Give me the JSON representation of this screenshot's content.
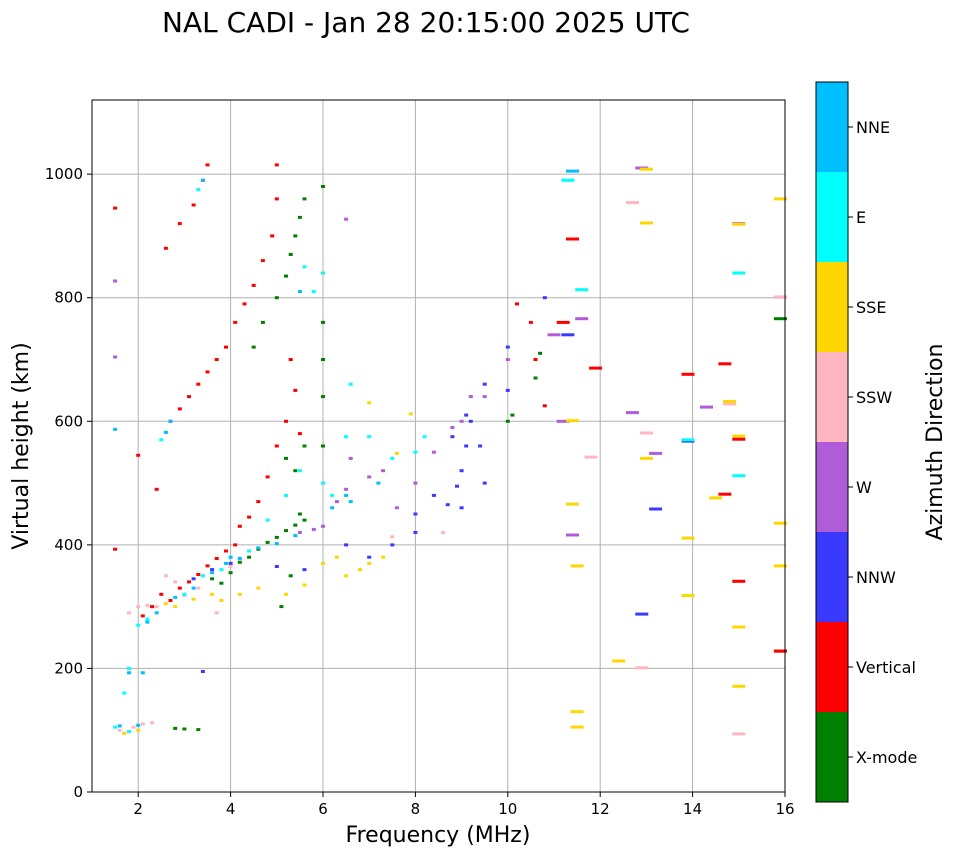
{
  "chart_data": {
    "type": "scatter",
    "title": "NAL CADI - Jan 28 20:15:00 2025 UTC",
    "xlabel": "Frequency (MHz)",
    "ylabel": "Virtual height (km)",
    "xlim": [
      1,
      16
    ],
    "ylim": [
      0,
      1120
    ],
    "xticks": [
      2,
      4,
      6,
      8,
      10,
      12,
      14,
      16
    ],
    "yticks": [
      0,
      200,
      400,
      600,
      800,
      1000
    ],
    "grid": true,
    "colorbar": {
      "label": "Azimuth Direction",
      "categories": [
        "X-mode",
        "Vertical",
        "NNW",
        "W",
        "SSW",
        "SSE",
        "E",
        "NNE"
      ],
      "colors": [
        "#008000",
        "#ff0000",
        "#3a3aff",
        "#b05cd8",
        "#ffb6c1",
        "#ffd700",
        "#00ffff",
        "#00bfff"
      ]
    },
    "series": [
      {
        "name": "X-mode",
        "points": [
          [
            2.8,
            103
          ],
          [
            3.0,
            102
          ],
          [
            3.3,
            101
          ],
          [
            3.6,
            345
          ],
          [
            3.8,
            338
          ],
          [
            4.0,
            355
          ],
          [
            4.2,
            372
          ],
          [
            4.4,
            380
          ],
          [
            4.6,
            393
          ],
          [
            4.8,
            404
          ],
          [
            5.0,
            412
          ],
          [
            5.2,
            423
          ],
          [
            5.4,
            432
          ],
          [
            5.6,
            440
          ],
          [
            5.1,
            300
          ],
          [
            5.3,
            350
          ],
          [
            5.5,
            450
          ],
          [
            5.2,
            540
          ],
          [
            5.4,
            520
          ],
          [
            5.6,
            560
          ],
          [
            4.5,
            720
          ],
          [
            4.7,
            760
          ],
          [
            5.0,
            800
          ],
          [
            5.2,
            835
          ],
          [
            5.3,
            870
          ],
          [
            5.4,
            900
          ],
          [
            5.5,
            930
          ],
          [
            5.6,
            960
          ],
          [
            6.0,
            980
          ],
          [
            6.0,
            760
          ],
          [
            6.0,
            700
          ],
          [
            6.0,
            640
          ],
          [
            6.0,
            560
          ],
          [
            10.0,
            600
          ],
          [
            10.1,
            610
          ],
          [
            10.6,
            670
          ],
          [
            10.7,
            710
          ],
          [
            15.9,
            766
          ],
          [
            15.9,
            228
          ]
        ]
      },
      {
        "name": "Vertical",
        "points": [
          [
            1.5,
            945
          ],
          [
            1.5,
            393
          ],
          [
            2.0,
            545
          ],
          [
            2.1,
            285
          ],
          [
            2.3,
            300
          ],
          [
            2.5,
            320
          ],
          [
            2.7,
            310
          ],
          [
            2.9,
            330
          ],
          [
            3.1,
            340
          ],
          [
            3.3,
            352
          ],
          [
            3.5,
            366
          ],
          [
            3.7,
            378
          ],
          [
            3.9,
            390
          ],
          [
            4.1,
            400
          ],
          [
            4.2,
            430
          ],
          [
            4.4,
            445
          ],
          [
            4.6,
            470
          ],
          [
            4.8,
            510
          ],
          [
            5.0,
            560
          ],
          [
            5.2,
            600
          ],
          [
            2.4,
            490
          ],
          [
            2.7,
            600
          ],
          [
            2.9,
            620
          ],
          [
            3.1,
            640
          ],
          [
            3.3,
            660
          ],
          [
            3.5,
            680
          ],
          [
            3.7,
            700
          ],
          [
            3.9,
            720
          ],
          [
            4.1,
            760
          ],
          [
            4.3,
            790
          ],
          [
            4.5,
            820
          ],
          [
            4.7,
            860
          ],
          [
            4.9,
            900
          ],
          [
            5.0,
            960
          ],
          [
            5.0,
            1015
          ],
          [
            3.4,
            990
          ],
          [
            2.6,
            880
          ],
          [
            2.9,
            920
          ],
          [
            3.2,
            950
          ],
          [
            3.5,
            1015
          ],
          [
            5.3,
            700
          ],
          [
            5.4,
            650
          ],
          [
            5.5,
            580
          ],
          [
            10.2,
            790
          ],
          [
            10.5,
            760
          ],
          [
            10.6,
            700
          ],
          [
            10.8,
            625
          ],
          [
            11.2,
            760
          ],
          [
            11.4,
            895
          ],
          [
            11.9,
            686
          ],
          [
            13.9,
            676
          ],
          [
            14.7,
            693
          ],
          [
            14.7,
            482
          ],
          [
            15.0,
            571
          ],
          [
            15.0,
            341
          ],
          [
            15.9,
            228
          ]
        ]
      },
      {
        "name": "NNW",
        "points": [
          [
            3.2,
            345
          ],
          [
            3.6,
            360
          ],
          [
            4.0,
            370
          ],
          [
            5.0,
            365
          ],
          [
            5.6,
            360
          ],
          [
            6.5,
            400
          ],
          [
            7.0,
            380
          ],
          [
            7.5,
            400
          ],
          [
            8.0,
            420
          ],
          [
            8.0,
            450
          ],
          [
            8.4,
            480
          ],
          [
            8.7,
            465
          ],
          [
            8.9,
            495
          ],
          [
            9.0,
            520
          ],
          [
            9.1,
            560
          ],
          [
            9.2,
            600
          ],
          [
            9.4,
            560
          ],
          [
            9.5,
            500
          ],
          [
            9.5,
            660
          ],
          [
            9.0,
            460
          ],
          [
            8.8,
            575
          ],
          [
            9.1,
            610
          ],
          [
            10.0,
            650
          ],
          [
            10.0,
            720
          ],
          [
            10.8,
            800
          ],
          [
            11.3,
            740
          ],
          [
            13.2,
            458
          ],
          [
            12.9,
            288
          ],
          [
            13.9,
            568
          ],
          [
            3.4,
            195
          ]
        ]
      },
      {
        "name": "W",
        "points": [
          [
            5.5,
            420
          ],
          [
            5.8,
            425
          ],
          [
            6.0,
            430
          ],
          [
            6.3,
            470
          ],
          [
            6.5,
            490
          ],
          [
            6.6,
            540
          ],
          [
            7.0,
            510
          ],
          [
            7.3,
            520
          ],
          [
            7.6,
            460
          ],
          [
            8.0,
            500
          ],
          [
            8.4,
            550
          ],
          [
            8.8,
            590
          ],
          [
            9.0,
            600
          ],
          [
            9.2,
            640
          ],
          [
            9.5,
            640
          ],
          [
            10.0,
            700
          ],
          [
            11.0,
            740
          ],
          [
            11.2,
            600
          ],
          [
            11.4,
            416
          ],
          [
            11.6,
            766
          ],
          [
            12.7,
            614
          ],
          [
            13.2,
            548
          ],
          [
            14.3,
            623
          ],
          [
            15.0,
            920
          ],
          [
            15.9,
            801
          ],
          [
            6.5,
            927
          ],
          [
            1.5,
            827
          ],
          [
            1.5,
            704
          ],
          [
            12.9,
            1010
          ]
        ]
      },
      {
        "name": "SSW",
        "points": [
          [
            1.6,
            100
          ],
          [
            1.9,
            105
          ],
          [
            2.1,
            110
          ],
          [
            2.3,
            112
          ],
          [
            1.8,
            290
          ],
          [
            2.0,
            300
          ],
          [
            2.2,
            302
          ],
          [
            2.4,
            300
          ],
          [
            2.6,
            350
          ],
          [
            2.8,
            340
          ],
          [
            3.0,
            318
          ],
          [
            3.3,
            330
          ],
          [
            3.7,
            290
          ],
          [
            4.0,
            365
          ],
          [
            7.5,
            413
          ],
          [
            11.8,
            542
          ],
          [
            12.7,
            954
          ],
          [
            13.0,
            581
          ],
          [
            14.8,
            628
          ],
          [
            15.0,
            94
          ],
          [
            15.9,
            801
          ],
          [
            12.9,
            201
          ],
          [
            8.6,
            420
          ]
        ]
      },
      {
        "name": "SSE",
        "points": [
          [
            1.7,
            95
          ],
          [
            2.0,
            100
          ],
          [
            2.6,
            305
          ],
          [
            2.8,
            300
          ],
          [
            3.2,
            312
          ],
          [
            3.6,
            320
          ],
          [
            3.8,
            310
          ],
          [
            4.2,
            320
          ],
          [
            4.6,
            330
          ],
          [
            5.2,
            320
          ],
          [
            5.6,
            335
          ],
          [
            6.0,
            370
          ],
          [
            6.3,
            380
          ],
          [
            6.5,
            350
          ],
          [
            6.8,
            360
          ],
          [
            7.0,
            370
          ],
          [
            7.3,
            380
          ],
          [
            7.6,
            548
          ],
          [
            7.9,
            612
          ],
          [
            7.0,
            630
          ],
          [
            11.4,
            466
          ],
          [
            11.5,
            366
          ],
          [
            11.5,
            130
          ],
          [
            11.5,
            105
          ],
          [
            11.4,
            601
          ],
          [
            12.4,
            212
          ],
          [
            13.0,
            540
          ],
          [
            13.0,
            921
          ],
          [
            13.0,
            1008
          ],
          [
            13.9,
            411
          ],
          [
            13.9,
            318
          ],
          [
            14.5,
            476
          ],
          [
            14.8,
            632
          ],
          [
            15.0,
            919
          ],
          [
            15.0,
            576
          ],
          [
            15.0,
            267
          ],
          [
            15.0,
            171
          ],
          [
            15.9,
            960
          ],
          [
            15.9,
            435
          ],
          [
            15.9,
            366
          ]
        ]
      },
      {
        "name": "E",
        "points": [
          [
            1.5,
            105
          ],
          [
            1.8,
            98
          ],
          [
            2.0,
            270
          ],
          [
            2.2,
            280
          ],
          [
            3.0,
            320
          ],
          [
            3.4,
            350
          ],
          [
            3.8,
            360
          ],
          [
            4.4,
            390
          ],
          [
            4.8,
            440
          ],
          [
            5.2,
            480
          ],
          [
            5.5,
            520
          ],
          [
            6.0,
            500
          ],
          [
            6.2,
            480
          ],
          [
            6.5,
            575
          ],
          [
            7.0,
            575
          ],
          [
            7.5,
            540
          ],
          [
            8.0,
            550
          ],
          [
            8.2,
            575
          ],
          [
            5.6,
            850
          ],
          [
            5.8,
            810
          ],
          [
            6.0,
            840
          ],
          [
            6.6,
            660
          ],
          [
            11.3,
            990
          ],
          [
            11.6,
            813
          ],
          [
            13.9,
            570
          ],
          [
            15.0,
            840
          ],
          [
            15.0,
            512
          ],
          [
            3.3,
            975
          ],
          [
            2.5,
            570
          ],
          [
            1.7,
            160
          ],
          [
            1.8,
            200
          ]
        ]
      },
      {
        "name": "NNE",
        "points": [
          [
            1.6,
            107
          ],
          [
            2.0,
            108
          ],
          [
            2.2,
            275
          ],
          [
            2.4,
            290
          ],
          [
            2.8,
            315
          ],
          [
            3.2,
            330
          ],
          [
            3.6,
            355
          ],
          [
            3.9,
            370
          ],
          [
            4.2,
            378
          ],
          [
            4.6,
            395
          ],
          [
            5.0,
            402
          ],
          [
            5.4,
            415
          ],
          [
            6.2,
            460
          ],
          [
            6.6,
            470
          ],
          [
            4.0,
            380
          ],
          [
            3.4,
            990
          ],
          [
            2.7,
            600
          ],
          [
            2.6,
            582
          ],
          [
            5.5,
            810
          ],
          [
            6.5,
            480
          ],
          [
            7.2,
            500
          ],
          [
            11.4,
            1005
          ],
          [
            1.5,
            587
          ],
          [
            1.8,
            193
          ],
          [
            2.1,
            193
          ]
        ]
      }
    ]
  }
}
